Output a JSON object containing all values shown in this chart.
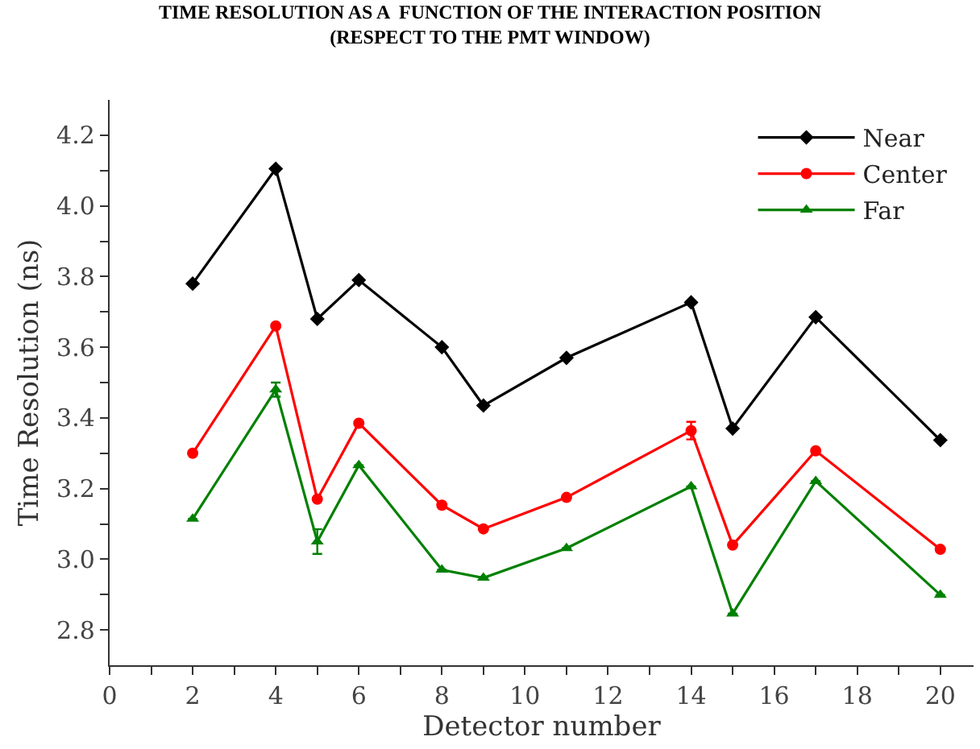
{
  "chart_data": {
    "type": "line",
    "title": "TIME RESOLUTION AS A  FUNCTION OF THE INTERACTION POSITION",
    "subtitle": "(RESPECT TO THE PMT WINDOW)",
    "xlabel": "Detector number",
    "ylabel": "Time Resolution (ns)",
    "x": [
      2,
      4,
      5,
      6,
      8,
      9,
      11,
      14,
      15,
      17,
      20
    ],
    "series": [
      {
        "name": "Near",
        "color": "#000000",
        "marker": "diamond",
        "values": [
          3.78,
          4.105,
          3.68,
          3.79,
          3.6,
          3.435,
          3.57,
          3.727,
          3.37,
          3.685,
          3.337
        ],
        "errors": [
          null,
          null,
          null,
          null,
          null,
          null,
          null,
          null,
          null,
          null,
          null
        ]
      },
      {
        "name": "Center",
        "color": "#ff0000",
        "marker": "circle",
        "values": [
          3.3,
          3.66,
          3.17,
          3.385,
          3.153,
          3.086,
          3.175,
          3.364,
          3.04,
          3.307,
          3.028
        ],
        "errors": [
          null,
          null,
          null,
          null,
          null,
          null,
          null,
          0.025,
          null,
          null,
          null
        ]
      },
      {
        "name": "Far",
        "color": "#008000",
        "marker": "triangle",
        "values": [
          3.114,
          3.48,
          3.05,
          3.266,
          2.97,
          2.947,
          3.031,
          3.206,
          2.846,
          3.221,
          2.899
        ],
        "errors": [
          null,
          0.02,
          0.035,
          null,
          null,
          null,
          null,
          null,
          null,
          null,
          null
        ]
      }
    ],
    "xlim": [
      0,
      20.8
    ],
    "ylim": [
      2.7,
      4.3
    ],
    "xticks": [
      0,
      {
        "value": 1,
        "label": null
      },
      2,
      {
        "value": 3,
        "label": null
      },
      4,
      {
        "value": 5,
        "label": null
      },
      6,
      {
        "value": 7,
        "label": null
      },
      8,
      {
        "value": 9,
        "label": null
      },
      10,
      {
        "value": 11,
        "label": null
      },
      12,
      {
        "value": 13,
        "label": null
      },
      14,
      {
        "value": 15,
        "label": null
      },
      16,
      {
        "value": 17,
        "label": null
      },
      18,
      {
        "value": 19,
        "label": null
      },
      20
    ],
    "yticks": [
      {
        "value": 2.8,
        "label": "2.8"
      },
      {
        "value": 2.9,
        "label": null
      },
      {
        "value": 3.0,
        "label": "3.0"
      },
      {
        "value": 3.1,
        "label": null
      },
      {
        "value": 3.2,
        "label": "3.2"
      },
      {
        "value": 3.3,
        "label": null
      },
      {
        "value": 3.4,
        "label": "3.4"
      },
      {
        "value": 3.5,
        "label": null
      },
      {
        "value": 3.6,
        "label": "3.6"
      },
      {
        "value": 3.7,
        "label": null
      },
      {
        "value": 3.8,
        "label": "3.8"
      },
      {
        "value": 3.9,
        "label": null
      },
      {
        "value": 4.0,
        "label": "4.0"
      },
      {
        "value": 4.1,
        "label": null
      },
      {
        "value": 4.2,
        "label": "4.2"
      }
    ],
    "grid": false,
    "legend": "top right",
    "line_style": "solid"
  }
}
